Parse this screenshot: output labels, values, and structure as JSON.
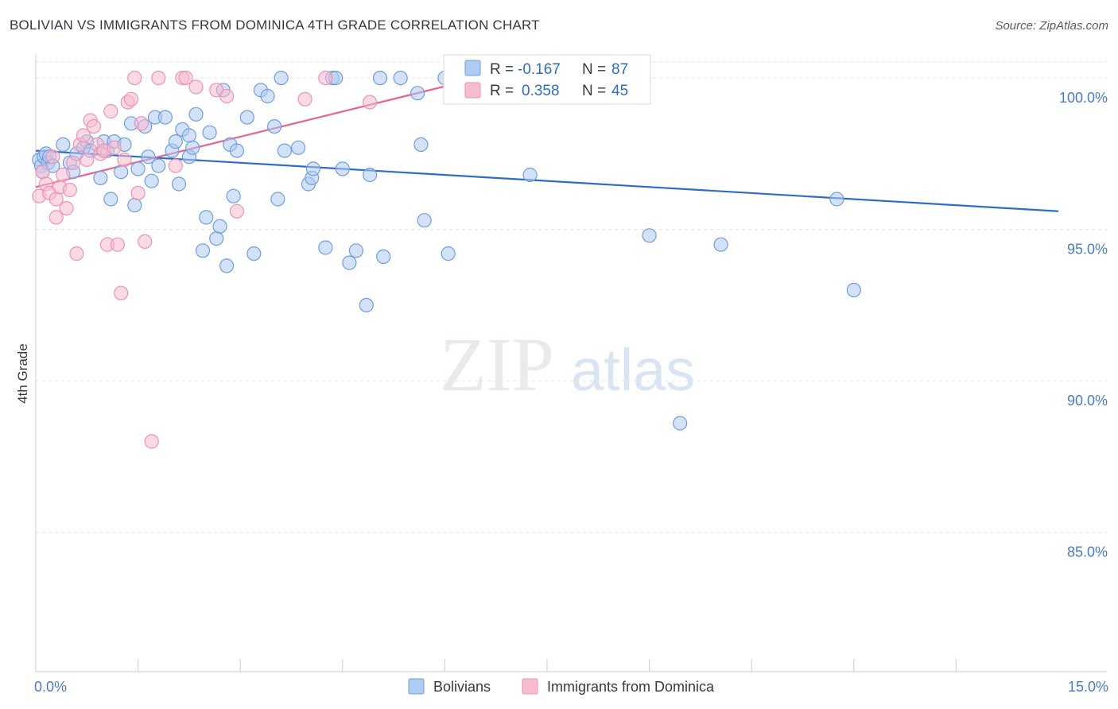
{
  "header": {
    "title": "BOLIVIAN VS IMMIGRANTS FROM DOMINICA 4TH GRADE CORRELATION CHART",
    "source": "Source: ZipAtlas.com"
  },
  "watermark": {
    "zip": "ZIP",
    "atlas": "atlas"
  },
  "colors": {
    "blue_fill": "#aecbf2",
    "blue_stroke": "#6f9ede",
    "blue_line": "#2d6cc8",
    "pink_fill": "#f7bcd0",
    "pink_stroke": "#ec93b2",
    "pink_line": "#e8618f"
  },
  "stats": [
    {
      "r_label": "R =",
      "r_value": "-0.167",
      "n_label": "N =",
      "n_value": "87"
    },
    {
      "r_label": "R =",
      "r_value": "0.358",
      "n_label": "N =",
      "n_value": "45"
    }
  ],
  "chart_data": {
    "type": "scatter",
    "title": "BOLIVIAN VS IMMIGRANTS FROM DOMINICA 4TH GRADE CORRELATION CHART",
    "xlabel": "",
    "ylabel": "4th Grade",
    "xlim": [
      0,
      15
    ],
    "ylim": [
      80.4,
      101.0
    ],
    "x_tick_labels": [
      {
        "value": 0,
        "label": "0.0%"
      },
      {
        "value": 15,
        "label": "15.0%"
      }
    ],
    "y_tick_labels": [
      {
        "value": 100,
        "label": "100.0%"
      },
      {
        "value": 95,
        "label": "95.0%"
      },
      {
        "value": 90,
        "label": "90.0%"
      },
      {
        "value": 85,
        "label": "85.0%"
      }
    ],
    "x_minor_ticks": [
      1.5,
      3.0,
      4.5,
      6.0,
      7.5,
      9.0,
      10.5,
      12.0,
      13.5
    ],
    "grid": true,
    "legend_position": "bottom",
    "series": [
      {
        "name": "Bolivians",
        "color": "blue",
        "trend": {
          "x0": 0,
          "y0": 97.6,
          "x1": 15,
          "y1": 95.6
        },
        "points": [
          [
            0.05,
            97.3
          ],
          [
            0.08,
            97.1
          ],
          [
            0.1,
            96.9
          ],
          [
            0.12,
            97.4
          ],
          [
            0.15,
            97.5
          ],
          [
            0.18,
            97.2
          ],
          [
            0.2,
            97.4
          ],
          [
            0.25,
            97.1
          ],
          [
            0.4,
            97.8
          ],
          [
            0.5,
            97.2
          ],
          [
            0.55,
            96.9
          ],
          [
            0.6,
            97.5
          ],
          [
            0.7,
            97.7
          ],
          [
            0.75,
            97.9
          ],
          [
            0.8,
            97.6
          ],
          [
            0.95,
            96.7
          ],
          [
            1.0,
            97.9
          ],
          [
            1.05,
            97.6
          ],
          [
            1.1,
            96.0
          ],
          [
            1.15,
            97.9
          ],
          [
            1.25,
            96.9
          ],
          [
            1.3,
            97.8
          ],
          [
            1.4,
            98.5
          ],
          [
            1.45,
            95.8
          ],
          [
            1.5,
            97.0
          ],
          [
            1.6,
            98.4
          ],
          [
            1.65,
            97.4
          ],
          [
            1.7,
            96.6
          ],
          [
            1.75,
            98.7
          ],
          [
            1.8,
            97.1
          ],
          [
            1.9,
            98.7
          ],
          [
            2.0,
            97.6
          ],
          [
            2.05,
            97.9
          ],
          [
            2.1,
            96.5
          ],
          [
            2.15,
            98.3
          ],
          [
            2.25,
            97.4
          ],
          [
            2.3,
            97.7
          ],
          [
            2.35,
            98.8
          ],
          [
            2.25,
            98.1
          ],
          [
            2.45,
            94.3
          ],
          [
            2.5,
            95.4
          ],
          [
            2.55,
            98.2
          ],
          [
            2.65,
            94.7
          ],
          [
            2.7,
            95.1
          ],
          [
            2.75,
            99.6
          ],
          [
            2.8,
            93.8
          ],
          [
            2.85,
            97.8
          ],
          [
            2.9,
            96.1
          ],
          [
            2.95,
            97.6
          ],
          [
            3.1,
            98.7
          ],
          [
            3.2,
            94.2
          ],
          [
            3.3,
            99.6
          ],
          [
            3.4,
            99.4
          ],
          [
            3.5,
            98.4
          ],
          [
            3.55,
            96.0
          ],
          [
            3.6,
            100.0
          ],
          [
            3.65,
            97.6
          ],
          [
            3.85,
            97.7
          ],
          [
            4.0,
            96.5
          ],
          [
            4.05,
            96.7
          ],
          [
            4.07,
            97.0
          ],
          [
            4.25,
            94.4
          ],
          [
            4.35,
            100.0
          ],
          [
            4.4,
            100.0
          ],
          [
            4.5,
            97.0
          ],
          [
            4.6,
            93.9
          ],
          [
            4.7,
            94.3
          ],
          [
            4.85,
            92.5
          ],
          [
            4.9,
            96.8
          ],
          [
            5.05,
            100.0
          ],
          [
            5.1,
            94.1
          ],
          [
            5.35,
            100.0
          ],
          [
            5.6,
            99.5
          ],
          [
            5.65,
            97.8
          ],
          [
            5.7,
            95.3
          ],
          [
            6.0,
            100.0
          ],
          [
            6.05,
            94.2
          ],
          [
            6.45,
            100.0
          ],
          [
            7.25,
            96.8
          ],
          [
            7.45,
            100.0
          ],
          [
            7.6,
            100.0
          ],
          [
            8.5,
            100.0
          ],
          [
            8.9,
            99.8
          ],
          [
            9.0,
            94.8
          ],
          [
            9.45,
            88.6
          ],
          [
            10.05,
            94.5
          ],
          [
            11.75,
            96.0
          ],
          [
            12.0,
            93.0
          ]
        ]
      },
      {
        "name": "Immigrants from Dominica",
        "color": "pink",
        "trend": {
          "x0": 0,
          "y0": 96.4,
          "x1": 6.5,
          "y1": 100.0
        },
        "points": [
          [
            0.05,
            96.1
          ],
          [
            0.1,
            96.9
          ],
          [
            0.15,
            96.5
          ],
          [
            0.2,
            96.2
          ],
          [
            0.25,
            97.4
          ],
          [
            0.3,
            96.0
          ],
          [
            0.3,
            95.4
          ],
          [
            0.35,
            96.4
          ],
          [
            0.4,
            96.8
          ],
          [
            0.45,
            95.7
          ],
          [
            0.5,
            96.3
          ],
          [
            0.55,
            97.2
          ],
          [
            0.6,
            94.2
          ],
          [
            0.65,
            97.8
          ],
          [
            0.7,
            98.1
          ],
          [
            0.75,
            97.3
          ],
          [
            0.8,
            98.6
          ],
          [
            0.85,
            98.4
          ],
          [
            0.9,
            97.8
          ],
          [
            0.95,
            97.5
          ],
          [
            1.0,
            97.6
          ],
          [
            1.05,
            94.5
          ],
          [
            1.1,
            98.9
          ],
          [
            1.15,
            97.7
          ],
          [
            1.2,
            94.5
          ],
          [
            1.25,
            92.9
          ],
          [
            1.3,
            97.3
          ],
          [
            1.35,
            99.2
          ],
          [
            1.4,
            99.3
          ],
          [
            1.45,
            100.0
          ],
          [
            1.5,
            96.2
          ],
          [
            1.55,
            98.5
          ],
          [
            1.6,
            94.6
          ],
          [
            1.7,
            88.0
          ],
          [
            1.8,
            100.0
          ],
          [
            2.05,
            97.1
          ],
          [
            2.15,
            100.0
          ],
          [
            2.2,
            100.0
          ],
          [
            2.35,
            99.7
          ],
          [
            2.65,
            99.6
          ],
          [
            2.8,
            99.4
          ],
          [
            2.95,
            95.6
          ],
          [
            3.95,
            99.3
          ],
          [
            4.25,
            100.0
          ],
          [
            4.9,
            99.2
          ]
        ]
      }
    ]
  },
  "legend": {
    "items": [
      "Bolivians",
      "Immigrants from Dominica"
    ]
  }
}
